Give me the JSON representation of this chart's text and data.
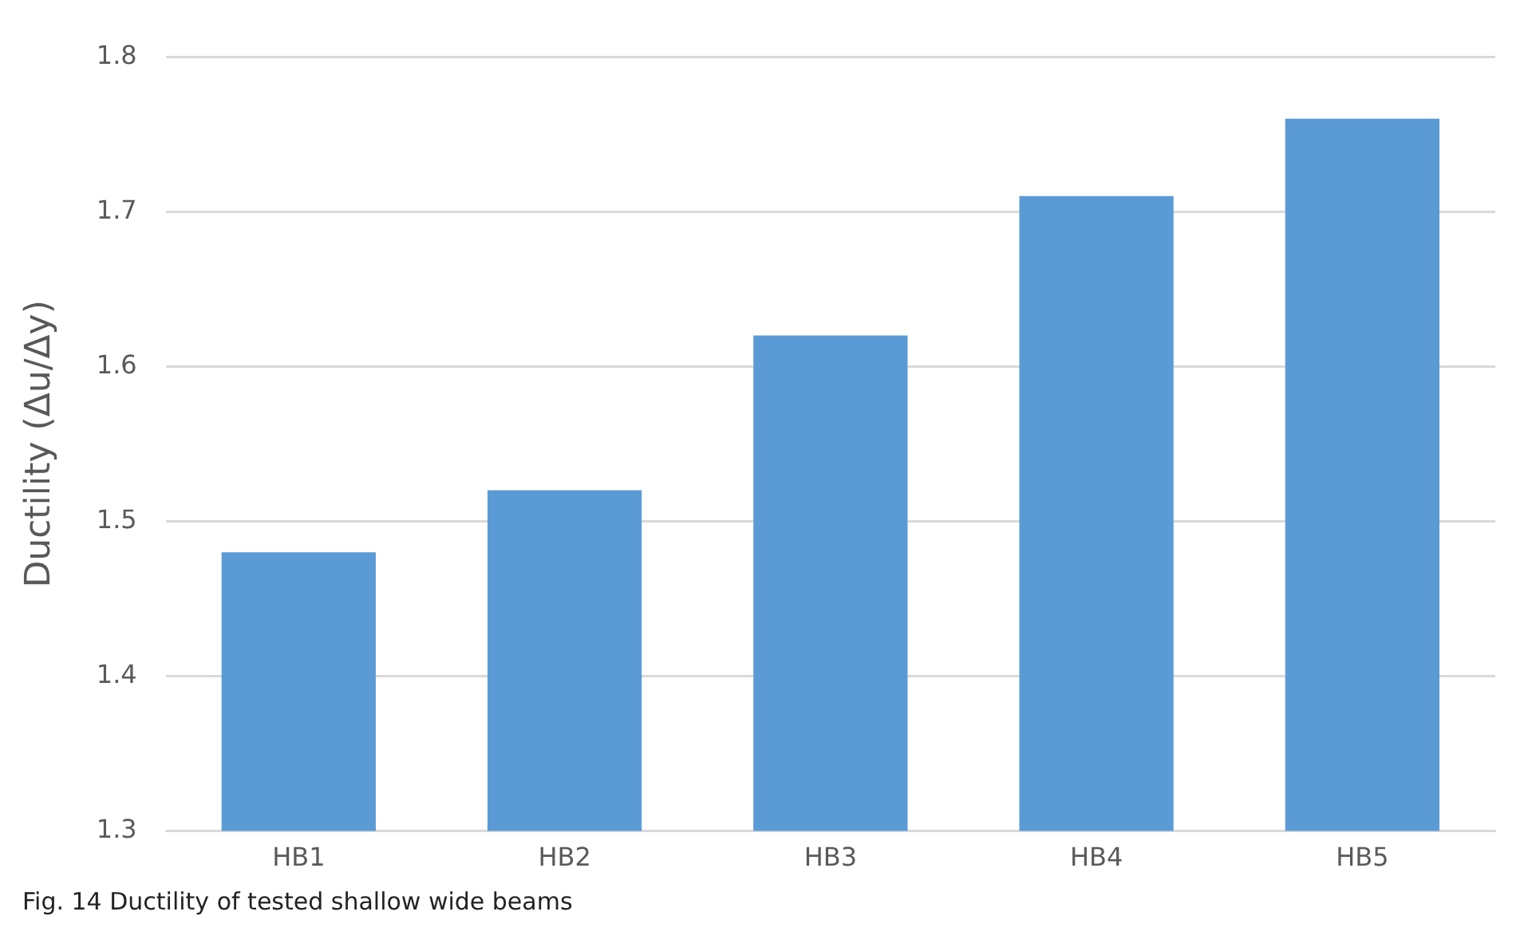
{
  "chart_data": {
    "type": "bar",
    "ylabel": "Ductility (Δu/Δy)",
    "categories": [
      "HB1",
      "HB2",
      "HB3",
      "HB4",
      "HB5"
    ],
    "values": [
      1.48,
      1.52,
      1.62,
      1.71,
      1.76
    ],
    "color": "#5b9bd5",
    "ylim": [
      1.3,
      1.8
    ],
    "yticks": [
      1.3,
      1.4,
      1.5,
      1.6,
      1.7,
      1.8
    ],
    "grid": "y",
    "legend": false,
    "annotations": [
      "Fig. 14 Ductility of tested shallow wide beams"
    ]
  }
}
